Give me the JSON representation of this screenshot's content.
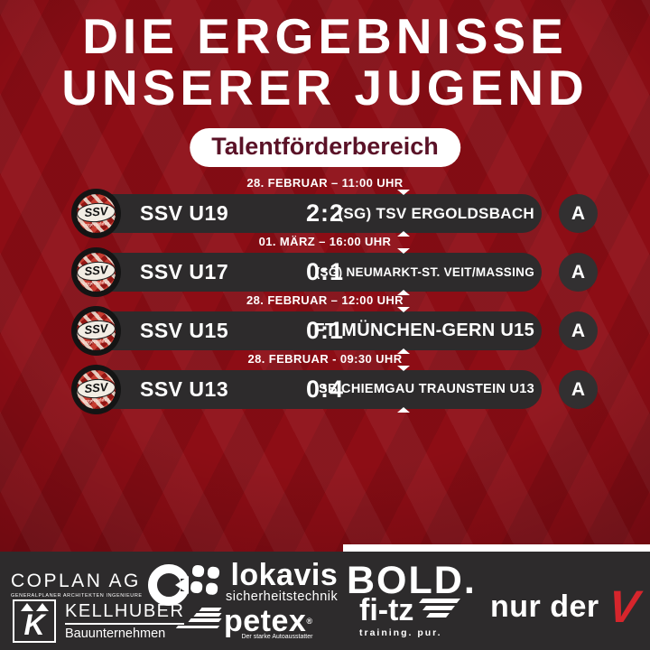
{
  "page": {
    "title_line1": "DIE ERGEBNISSE",
    "title_line2": "UNSERER JUGEND",
    "badge_label": "Talentförderbereich"
  },
  "crest": {
    "abbr": "SSV",
    "club": "Eggenfelden"
  },
  "matches": [
    {
      "datetime": "28. FEBRUAR – 11:00 UHR",
      "team": "SSV U19",
      "score": "2:2",
      "opponent": "(SG) TSV ERGOLDSBACH",
      "venue": "A"
    },
    {
      "datetime": "01. MÄRZ – 16:00 UHR",
      "team": "SSV U17",
      "score": "0:1",
      "opponent": "(SG) NEUMARKT-ST. VEIT/MASSING",
      "venue": "A"
    },
    {
      "datetime": "28. FEBRUAR – 12:00 UHR",
      "team": "SSV U15",
      "score": "0:1",
      "opponent": "FT MÜNCHEN-GERN U15",
      "venue": "A"
    },
    {
      "datetime": "28. FEBRUAR - 09:30 UHR",
      "team": "SSV U13",
      "score": "0:4",
      "opponent": "SB CHIEMGAU TRAUNSTEIN U13",
      "venue": "A"
    }
  ],
  "colors": {
    "background_red": "#8d0d15",
    "bar_dark": "#2d2b2c",
    "badge_text": "#5a1227",
    "accent_v_red": "#d6252c",
    "white": "#ffffff"
  },
  "sponsors": {
    "coplan": {
      "name": "COPLAN AG",
      "tagline": "GENERALPLANER ARCHITEKTEN INGENIEURE"
    },
    "kellhuber": {
      "name": "KELLHUBER",
      "tagline": "Bauunternehmen",
      "mark": "K"
    },
    "lokavis": {
      "name": "lokavis",
      "tagline": "sicherheitstechnik"
    },
    "petex": {
      "name": "petex",
      "reg": "®",
      "tagline": "Der starke Autoausstatter"
    },
    "bold": {
      "name": "BOLD."
    },
    "fitz": {
      "name": "fi-tz",
      "tagline": "training. pur."
    },
    "nurder": {
      "prefix": "nur der",
      "v": "V"
    }
  }
}
